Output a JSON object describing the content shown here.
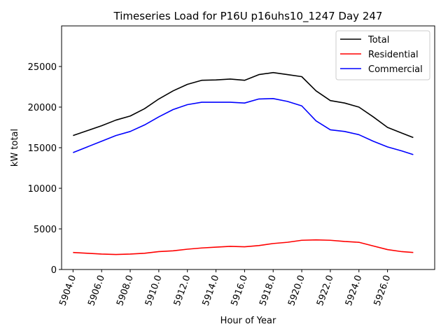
{
  "chart_data": {
    "type": "line",
    "title": "Timeseries Load for P16U p16uhs10_1247  Day 247",
    "xlabel": "Hour of Year",
    "ylabel": "kW total",
    "xlim": [
      5903.2,
      5929.3
    ],
    "ylim": [
      0,
      30000
    ],
    "xticks": [
      5904,
      5906,
      5908,
      5910,
      5912,
      5914,
      5916,
      5918,
      5920,
      5922,
      5924,
      5926
    ],
    "xtick_labels": [
      "5904.0",
      "5906.0",
      "5908.0",
      "5910.0",
      "5912.0",
      "5914.0",
      "5916.0",
      "5918.0",
      "5920.0",
      "5922.0",
      "5924.0",
      "5926.0"
    ],
    "yticks": [
      0,
      5000,
      10000,
      15000,
      20000,
      25000
    ],
    "ytick_labels": [
      "0",
      "5000",
      "10000",
      "15000",
      "20000",
      "25000"
    ],
    "grid": false,
    "legend_position": "top-right",
    "x": [
      5904,
      5905,
      5906,
      5907,
      5908,
      5909,
      5910,
      5911,
      5912,
      5913,
      5914,
      5915,
      5916,
      5917,
      5918,
      5919,
      5920,
      5921,
      5922,
      5923,
      5924,
      5925,
      5926,
      5927,
      5927.8
    ],
    "series": [
      {
        "name": "Total",
        "color": "#000000",
        "values": [
          16500,
          17100,
          17700,
          18400,
          18900,
          19800,
          21000,
          22000,
          22800,
          23300,
          23350,
          23450,
          23300,
          24000,
          24250,
          24000,
          23750,
          22000,
          20800,
          20500,
          20000,
          18800,
          17500,
          16800,
          16250
        ]
      },
      {
        "name": "Residential",
        "color": "#ff0000",
        "values": [
          2100,
          2000,
          1900,
          1850,
          1900,
          2000,
          2200,
          2300,
          2500,
          2650,
          2750,
          2850,
          2800,
          2950,
          3200,
          3350,
          3600,
          3650,
          3600,
          3450,
          3350,
          2900,
          2450,
          2200,
          2100
        ]
      },
      {
        "name": "Commercial",
        "color": "#0000ff",
        "values": [
          14400,
          15100,
          15800,
          16500,
          17000,
          17800,
          18800,
          19700,
          20300,
          20600,
          20600,
          20600,
          20500,
          21000,
          21050,
          20700,
          20150,
          18300,
          17200,
          17000,
          16600,
          15800,
          15100,
          14600,
          14150
        ]
      }
    ]
  }
}
